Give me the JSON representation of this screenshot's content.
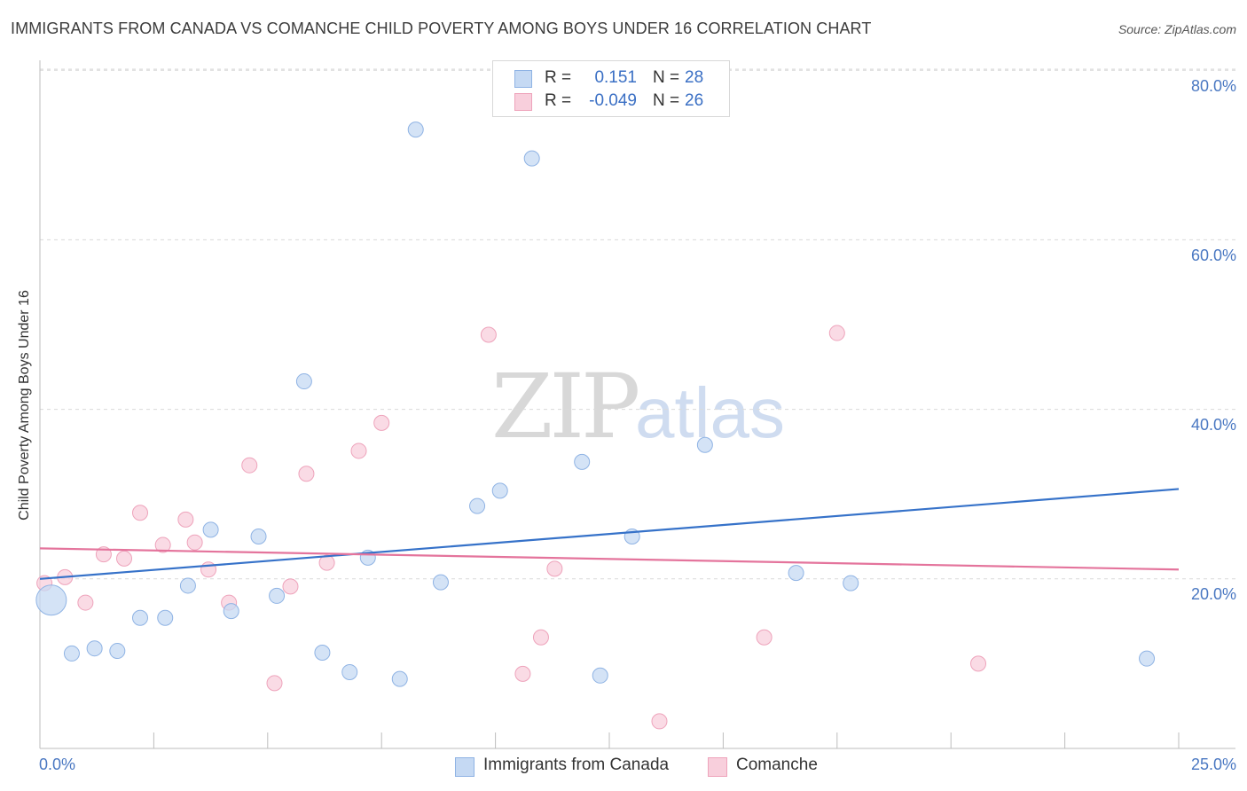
{
  "header": {
    "title": "IMMIGRANTS FROM CANADA VS COMANCHE CHILD POVERTY AMONG BOYS UNDER 16 CORRELATION CHART",
    "source": "Source: ZipAtlas.com"
  },
  "watermark": {
    "zip": "ZIP",
    "atlas": "atlas"
  },
  "stats": {
    "series1": {
      "r_label": "R =",
      "r_value": "0.151",
      "n_label": "N =",
      "n_value": "28"
    },
    "series2": {
      "r_label": "R =",
      "r_value": "-0.049",
      "n_label": "N =",
      "n_value": "26"
    }
  },
  "legend": {
    "series1": "Immigrants from Canada",
    "series2": "Comanche"
  },
  "colors": {
    "series1_fill": "#c5d9f3",
    "series1_stroke": "#8fb3e4",
    "series1_line": "#3672c9",
    "series2_fill": "#f8cfdc",
    "series2_stroke": "#eea3bb",
    "series2_line": "#e4749c",
    "grid": "#d9d9d9",
    "tick_text": "#4a78c2"
  },
  "chart_data": {
    "type": "scatter",
    "title": "IMMIGRANTS FROM CANADA VS COMANCHE CHILD POVERTY AMONG BOYS UNDER 16 CORRELATION CHART",
    "xlabel": "",
    "ylabel": "Child Poverty Among Boys Under 16",
    "xlim": [
      0,
      25
    ],
    "ylim": [
      0,
      82
    ],
    "x_tick_labels": [
      "0.0%",
      "25.0%"
    ],
    "y_ticks": [
      20,
      40,
      60,
      80
    ],
    "y_tick_labels": [
      "20.0%",
      "40.0%",
      "60.0%",
      "80.0%"
    ],
    "grid": true,
    "legend_position": "bottom-center",
    "series": [
      {
        "name": "Immigrants from Canada",
        "r": 0.151,
        "n": 28,
        "trend": {
          "x": [
            0,
            25
          ],
          "y": [
            20.0,
            30.6
          ]
        },
        "points": [
          {
            "x": 0.25,
            "y": 17.5,
            "size": 3
          },
          {
            "x": 0.7,
            "y": 11.2,
            "size": 1
          },
          {
            "x": 1.2,
            "y": 11.8,
            "size": 1
          },
          {
            "x": 1.7,
            "y": 11.5,
            "size": 1
          },
          {
            "x": 2.2,
            "y": 15.4,
            "size": 1
          },
          {
            "x": 2.75,
            "y": 15.4,
            "size": 1
          },
          {
            "x": 3.25,
            "y": 19.2,
            "size": 1
          },
          {
            "x": 3.75,
            "y": 25.8,
            "size": 1
          },
          {
            "x": 4.2,
            "y": 16.2,
            "size": 1
          },
          {
            "x": 4.8,
            "y": 25.0,
            "size": 1
          },
          {
            "x": 5.2,
            "y": 18.0,
            "size": 1
          },
          {
            "x": 5.8,
            "y": 43.3,
            "size": 1
          },
          {
            "x": 6.2,
            "y": 11.3,
            "size": 1
          },
          {
            "x": 6.8,
            "y": 9.0,
            "size": 1
          },
          {
            "x": 7.2,
            "y": 22.5,
            "size": 1
          },
          {
            "x": 7.9,
            "y": 8.2,
            "size": 1
          },
          {
            "x": 8.25,
            "y": 73.0,
            "size": 1
          },
          {
            "x": 8.8,
            "y": 19.6,
            "size": 1
          },
          {
            "x": 9.6,
            "y": 28.6,
            "size": 1
          },
          {
            "x": 10.1,
            "y": 30.4,
            "size": 1
          },
          {
            "x": 10.8,
            "y": 69.6,
            "size": 1
          },
          {
            "x": 11.9,
            "y": 33.8,
            "size": 1
          },
          {
            "x": 12.3,
            "y": 8.6,
            "size": 1
          },
          {
            "x": 13.0,
            "y": 25.0,
            "size": 1
          },
          {
            "x": 14.6,
            "y": 35.8,
            "size": 1
          },
          {
            "x": 16.6,
            "y": 20.7,
            "size": 1
          },
          {
            "x": 17.8,
            "y": 19.5,
            "size": 1
          },
          {
            "x": 24.3,
            "y": 10.6,
            "size": 1
          }
        ]
      },
      {
        "name": "Comanche",
        "r": -0.049,
        "n": 26,
        "trend": {
          "x": [
            0,
            25
          ],
          "y": [
            23.6,
            21.1
          ]
        },
        "points": [
          {
            "x": 0.1,
            "y": 19.5,
            "size": 1
          },
          {
            "x": 0.55,
            "y": 20.2,
            "size": 1
          },
          {
            "x": 1.0,
            "y": 17.2,
            "size": 1
          },
          {
            "x": 1.4,
            "y": 22.9,
            "size": 1
          },
          {
            "x": 1.85,
            "y": 22.4,
            "size": 1
          },
          {
            "x": 2.2,
            "y": 27.8,
            "size": 1
          },
          {
            "x": 2.7,
            "y": 24.0,
            "size": 1
          },
          {
            "x": 3.2,
            "y": 27.0,
            "size": 1
          },
          {
            "x": 3.4,
            "y": 24.3,
            "size": 1
          },
          {
            "x": 3.7,
            "y": 21.1,
            "size": 1
          },
          {
            "x": 4.15,
            "y": 17.2,
            "size": 1
          },
          {
            "x": 4.6,
            "y": 33.4,
            "size": 1
          },
          {
            "x": 5.15,
            "y": 7.7,
            "size": 1
          },
          {
            "x": 5.5,
            "y": 19.1,
            "size": 1
          },
          {
            "x": 5.85,
            "y": 32.4,
            "size": 1
          },
          {
            "x": 6.3,
            "y": 21.9,
            "size": 1
          },
          {
            "x": 7.0,
            "y": 35.1,
            "size": 1
          },
          {
            "x": 7.5,
            "y": 38.4,
            "size": 1
          },
          {
            "x": 9.85,
            "y": 48.8,
            "size": 1
          },
          {
            "x": 10.6,
            "y": 8.8,
            "size": 1
          },
          {
            "x": 11.0,
            "y": 13.1,
            "size": 1
          },
          {
            "x": 11.3,
            "y": 21.2,
            "size": 1
          },
          {
            "x": 13.6,
            "y": 3.2,
            "size": 1
          },
          {
            "x": 15.9,
            "y": 13.1,
            "size": 1
          },
          {
            "x": 17.5,
            "y": 49.0,
            "size": 1
          },
          {
            "x": 20.6,
            "y": 10.0,
            "size": 1
          }
        ]
      }
    ]
  }
}
